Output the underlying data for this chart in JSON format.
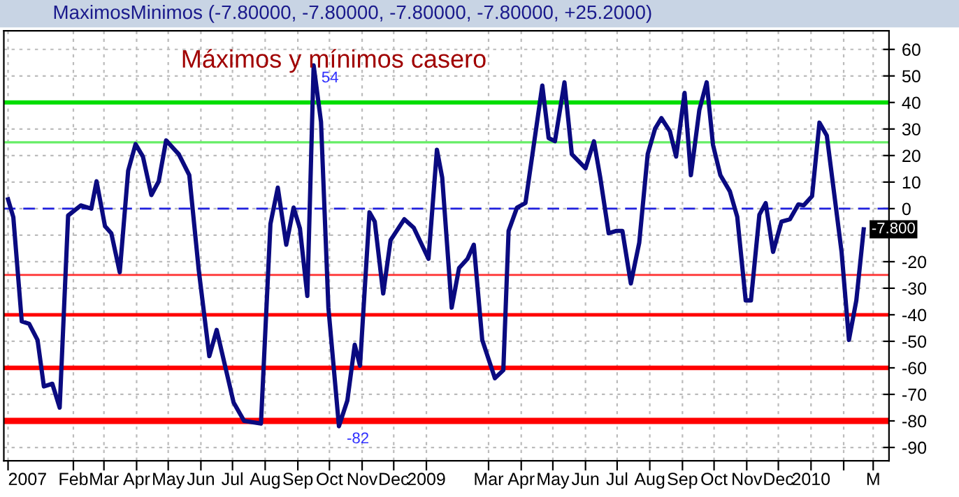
{
  "chart_data": {
    "type": "line",
    "subtitle": "MaximosMinimos (-7.80000, -7.80000, -7.80000, -7.80000, +25.2000)",
    "title": "Máximos y mínimos casero",
    "x": [
      "2007-12-01",
      "2007-12-06",
      "2007-12-14",
      "2007-12-21",
      "2007-12-29",
      "2008-01-04",
      "2008-01-12",
      "2008-01-19",
      "2008-01-27",
      "2008-02-08",
      "2008-02-18",
      "2008-02-23",
      "2008-03-02",
      "2008-03-08",
      "2008-03-16",
      "2008-03-24",
      "2008-03-31",
      "2008-04-07",
      "2008-04-15",
      "2008-04-22",
      "2008-04-29",
      "2008-05-11",
      "2008-05-21",
      "2008-05-30",
      "2008-06-09",
      "2008-06-16",
      "2008-07-02",
      "2008-07-12",
      "2008-07-28",
      "2008-08-06",
      "2008-08-13",
      "2008-08-21",
      "2008-08-28",
      "2008-09-03",
      "2008-09-10",
      "2008-09-16",
      "2008-09-23",
      "2008-09-30",
      "2008-10-10",
      "2008-10-18",
      "2008-10-25",
      "2008-10-30",
      "2008-11-08",
      "2008-11-13",
      "2008-11-21",
      "2008-11-28",
      "2008-12-11",
      "2008-12-20",
      "2009-01-03",
      "2009-01-11",
      "2009-01-16",
      "2009-01-25",
      "2009-02-01",
      "2009-02-09",
      "2009-02-15",
      "2009-02-23",
      "2009-03-07",
      "2009-03-15",
      "2009-03-20",
      "2009-03-28",
      "2009-04-05",
      "2009-04-21",
      "2009-04-27",
      "2009-05-03",
      "2009-05-12",
      "2009-05-19",
      "2009-06-01",
      "2009-06-09",
      "2009-06-15",
      "2009-06-23",
      "2009-06-30",
      "2009-07-06",
      "2009-07-14",
      "2009-07-22",
      "2009-07-30",
      "2009-08-06",
      "2009-08-12",
      "2009-08-20",
      "2009-08-26",
      "2009-09-03",
      "2009-09-09",
      "2009-09-17",
      "2009-09-24",
      "2009-09-30",
      "2009-10-07",
      "2009-10-16",
      "2009-10-23",
      "2009-10-31",
      "2009-11-05",
      "2009-11-13",
      "2009-11-19",
      "2009-11-26",
      "2009-12-04",
      "2009-12-12",
      "2009-12-20",
      "2009-12-25",
      "2010-01-02",
      "2010-01-09",
      "2010-01-16",
      "2010-01-30",
      "2010-02-06",
      "2010-02-13",
      "2010-02-20"
    ],
    "series": [
      {
        "color": "#0a0a80",
        "values": [
          3.5,
          -3.2,
          -42.5,
          -43.4,
          -49.5,
          -67,
          -66,
          -75,
          -2.6,
          1.2,
          0,
          10.3,
          -6.6,
          -9.3,
          -24,
          14.3,
          24.3,
          19.6,
          5.1,
          10.3,
          25.7,
          20.5,
          12.6,
          -23.3,
          -55.6,
          -45.7,
          -73,
          -80,
          -81,
          -5.8,
          7.9,
          -13.6,
          0.4,
          -7.5,
          -32.9,
          54,
          32.7,
          -37.3,
          -82,
          -72.3,
          -51.3,
          -59.2,
          -1.4,
          -4.9,
          -32,
          -11.9,
          -4,
          -7.2,
          -18.9,
          22.2,
          11.7,
          -37.3,
          -22.4,
          -18.9,
          -13.6,
          -49.5,
          -63.9,
          -60.9,
          -8.4,
          0.4,
          2.1,
          46.4,
          26.6,
          25.4,
          47.6,
          20.5,
          15.2,
          25.4,
          11.7,
          -9.3,
          -8.4,
          -8.4,
          -28.2,
          -12.8,
          20.5,
          30.1,
          34.1,
          29.2,
          19.6,
          43.6,
          12.6,
          37.1,
          47.6,
          24,
          12.6,
          6.5,
          -3.1,
          -34.6,
          -34.6,
          -2.3,
          2.1,
          -16.3,
          -4.9,
          -4,
          1.6,
          1.2,
          4.7,
          32.4,
          27.5,
          -16.3,
          -49.5,
          -34.6,
          -7.8
        ],
        "value_labels": [
          null,
          null,
          null,
          null,
          null,
          null,
          null,
          null,
          null,
          null,
          null,
          null,
          null,
          null,
          null,
          null,
          null,
          null,
          null,
          null,
          null,
          null,
          null,
          null,
          null,
          null,
          null,
          null,
          null,
          null,
          null,
          null,
          null,
          null,
          null,
          "54",
          null,
          null,
          "-82",
          null,
          null,
          null,
          null,
          null,
          null,
          null,
          null,
          null,
          null,
          null,
          null,
          null,
          null,
          null,
          null,
          null,
          null,
          null,
          null,
          null,
          null,
          null,
          null,
          null,
          null,
          null,
          null,
          null,
          null,
          null,
          null,
          null,
          null,
          null,
          null,
          null,
          null,
          null,
          null,
          null,
          null,
          null,
          null,
          null,
          null,
          null,
          null,
          null,
          null,
          null,
          null,
          null,
          null,
          null,
          null,
          null,
          null,
          null,
          null,
          null,
          null,
          null,
          "-7.800"
        ]
      }
    ],
    "xlim": [
      "2007-11-27",
      "2010-03-16"
    ],
    "xticks": [
      {
        "value": "2007-12-01",
        "label": "2007"
      },
      {
        "value": "2008-02-01",
        "label": "Feb"
      },
      {
        "value": "2008-03-01",
        "label": "Mar"
      },
      {
        "value": "2008-04-01",
        "label": "Apr"
      },
      {
        "value": "2008-05-01",
        "label": "May"
      },
      {
        "value": "2008-06-01",
        "label": "Jun"
      },
      {
        "value": "2008-07-01",
        "label": "Jul"
      },
      {
        "value": "2008-08-01",
        "label": "Aug"
      },
      {
        "value": "2008-09-01",
        "label": "Sep"
      },
      {
        "value": "2008-10-01",
        "label": "Oct"
      },
      {
        "value": "2008-11-01",
        "label": "Nov"
      },
      {
        "value": "2008-12-01",
        "label": "Dec"
      },
      {
        "value": "2009-01-01",
        "label": "2009"
      },
      {
        "value": "2009-03-01",
        "label": "Mar"
      },
      {
        "value": "2009-04-01",
        "label": "Apr"
      },
      {
        "value": "2009-05-01",
        "label": "May"
      },
      {
        "value": "2009-06-01",
        "label": "Jun"
      },
      {
        "value": "2009-07-01",
        "label": "Jul"
      },
      {
        "value": "2009-08-01",
        "label": "Aug"
      },
      {
        "value": "2009-09-01",
        "label": "Sep"
      },
      {
        "value": "2009-10-01",
        "label": "Oct"
      },
      {
        "value": "2009-11-01",
        "label": "Nov"
      },
      {
        "value": "2009-12-01",
        "label": "Dec"
      },
      {
        "value": "2010-01-01",
        "label": "2010"
      },
      {
        "value": "2010-02-01",
        "label": null
      },
      {
        "value": "2010-03-01",
        "label": "M"
      }
    ],
    "ylim": [
      -95,
      67
    ],
    "yticks": [
      -90,
      -80,
      -70,
      -60,
      -50,
      -40,
      -30,
      -20,
      {
        "value": -10,
        "label": null
      },
      0,
      10,
      20,
      30,
      40,
      50,
      60
    ],
    "grid": true,
    "ref_lines": [
      {
        "axis": "y",
        "value": 40,
        "color": "#00dd00"
      },
      {
        "axis": "y",
        "value": 25,
        "color": "#66ee66"
      },
      {
        "axis": "y",
        "value": 0,
        "color": "#2020dd",
        "line_style": "dashed"
      },
      {
        "axis": "y",
        "value": -25,
        "color": "#ff3030"
      },
      {
        "axis": "y",
        "value": -40,
        "color": "#ff0000"
      },
      {
        "axis": "y",
        "value": -60,
        "color": "#ff0000"
      },
      {
        "axis": "y",
        "value": -80,
        "color": "#ff0000"
      }
    ]
  }
}
